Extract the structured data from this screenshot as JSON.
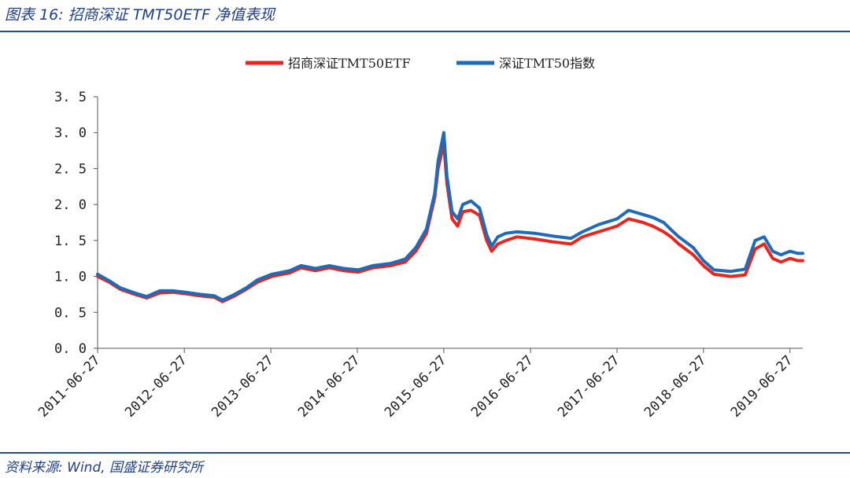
{
  "header": {
    "title": "图表 16:  招商深证 TMT50ETF 净值表现"
  },
  "footer": {
    "source": "资料来源: Wind, 国盛证券研究所"
  },
  "chart_data": {
    "type": "line",
    "title": "",
    "xlabel": "",
    "ylabel": "",
    "ylim": [
      0,
      3.5
    ],
    "yticks": [
      "0. 0",
      "0. 5",
      "1. 0",
      "1. 5",
      "2. 0",
      "2. 5",
      "3. 0",
      "3. 5"
    ],
    "xticks": [
      "2011-06-27",
      "2012-06-27",
      "2013-06-27",
      "2014-06-27",
      "2015-06-27",
      "2016-06-27",
      "2017-06-27",
      "2018-06-27",
      "2019-06-27"
    ],
    "xrange": [
      "2011-06-27",
      "2019-08-20"
    ],
    "grid": false,
    "legend_position": "top-center",
    "series": [
      {
        "name": "招商深证TMT50ETF",
        "color": "#e8261e",
        "x": [
          "2011-06-27",
          "2011-08-15",
          "2011-10-01",
          "2011-12-01",
          "2012-01-20",
          "2012-03-15",
          "2012-05-10",
          "2012-07-01",
          "2012-09-01",
          "2012-11-01",
          "2012-12-05",
          "2013-01-20",
          "2013-03-15",
          "2013-05-01",
          "2013-07-01",
          "2013-09-15",
          "2013-11-01",
          "2014-01-01",
          "2014-03-01",
          "2014-05-01",
          "2014-07-01",
          "2014-09-01",
          "2014-11-15",
          "2015-01-15",
          "2015-03-01",
          "2015-04-15",
          "2015-05-20",
          "2015-06-03",
          "2015-06-27",
          "2015-07-10",
          "2015-08-01",
          "2015-08-25",
          "2015-09-15",
          "2015-10-20",
          "2015-11-25",
          "2015-12-25",
          "2016-01-15",
          "2016-02-10",
          "2016-03-15",
          "2016-05-01",
          "2016-07-15",
          "2016-10-01",
          "2016-12-15",
          "2017-02-01",
          "2017-04-10",
          "2017-06-27",
          "2017-08-15",
          "2017-10-15",
          "2017-11-25",
          "2018-01-10",
          "2018-02-10",
          "2018-03-15",
          "2018-05-15",
          "2018-06-27",
          "2018-08-10",
          "2018-10-20",
          "2018-12-20",
          "2019-01-31",
          "2019-03-10",
          "2019-04-15",
          "2019-05-20",
          "2019-06-27",
          "2019-07-30",
          "2019-08-20"
        ],
        "values": [
          1.0,
          0.92,
          0.82,
          0.75,
          0.7,
          0.77,
          0.78,
          0.76,
          0.73,
          0.71,
          0.65,
          0.72,
          0.82,
          0.92,
          1.0,
          1.05,
          1.12,
          1.08,
          1.12,
          1.08,
          1.06,
          1.12,
          1.15,
          1.2,
          1.35,
          1.6,
          2.1,
          2.5,
          2.85,
          2.3,
          1.8,
          1.7,
          1.9,
          1.92,
          1.85,
          1.5,
          1.35,
          1.45,
          1.5,
          1.55,
          1.52,
          1.48,
          1.45,
          1.55,
          1.62,
          1.7,
          1.8,
          1.75,
          1.7,
          1.62,
          1.55,
          1.45,
          1.3,
          1.15,
          1.03,
          1.0,
          1.02,
          1.38,
          1.45,
          1.25,
          1.2,
          1.25,
          1.22,
          1.22
        ]
      },
      {
        "name": "深证TMT50指数",
        "color": "#1f6bb8",
        "x": [
          "2011-06-27",
          "2011-08-15",
          "2011-10-01",
          "2011-12-01",
          "2012-01-20",
          "2012-03-15",
          "2012-05-10",
          "2012-07-01",
          "2012-09-01",
          "2012-11-01",
          "2012-12-05",
          "2013-01-20",
          "2013-03-15",
          "2013-05-01",
          "2013-07-01",
          "2013-09-15",
          "2013-11-01",
          "2014-01-01",
          "2014-03-01",
          "2014-05-01",
          "2014-07-01",
          "2014-09-01",
          "2014-11-15",
          "2015-01-15",
          "2015-03-01",
          "2015-04-15",
          "2015-05-20",
          "2015-06-03",
          "2015-06-27",
          "2015-07-10",
          "2015-08-01",
          "2015-08-25",
          "2015-09-15",
          "2015-10-20",
          "2015-11-25",
          "2015-12-25",
          "2016-01-15",
          "2016-02-10",
          "2016-03-15",
          "2016-05-01",
          "2016-07-15",
          "2016-10-01",
          "2016-12-15",
          "2017-02-01",
          "2017-04-10",
          "2017-06-27",
          "2017-08-15",
          "2017-10-15",
          "2017-11-25",
          "2018-01-10",
          "2018-02-10",
          "2018-03-15",
          "2018-05-15",
          "2018-06-27",
          "2018-08-10",
          "2018-10-20",
          "2018-12-20",
          "2019-01-31",
          "2019-03-10",
          "2019-04-15",
          "2019-05-20",
          "2019-06-27",
          "2019-07-30",
          "2019-08-20"
        ],
        "values": [
          1.03,
          0.94,
          0.84,
          0.77,
          0.72,
          0.8,
          0.8,
          0.78,
          0.75,
          0.73,
          0.67,
          0.74,
          0.84,
          0.95,
          1.03,
          1.08,
          1.15,
          1.11,
          1.15,
          1.11,
          1.09,
          1.15,
          1.18,
          1.24,
          1.4,
          1.66,
          2.16,
          2.6,
          3.0,
          2.4,
          1.9,
          1.8,
          2.0,
          2.05,
          1.95,
          1.58,
          1.42,
          1.55,
          1.6,
          1.62,
          1.6,
          1.56,
          1.53,
          1.62,
          1.72,
          1.8,
          1.92,
          1.86,
          1.82,
          1.75,
          1.65,
          1.55,
          1.4,
          1.22,
          1.09,
          1.07,
          1.1,
          1.5,
          1.55,
          1.35,
          1.3,
          1.35,
          1.32,
          1.32
        ]
      }
    ]
  }
}
